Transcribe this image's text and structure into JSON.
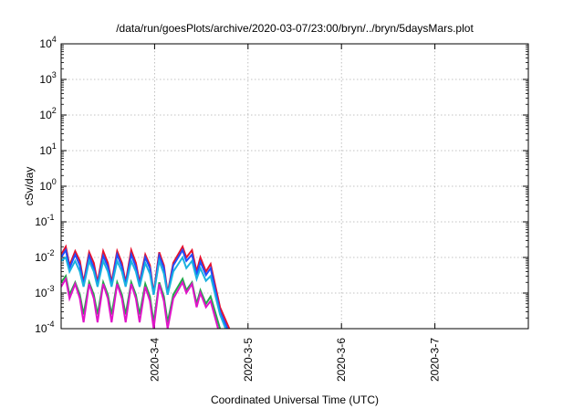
{
  "chart_data": {
    "type": "line",
    "title": "/data/run/goesPlots/archive/2020-03-07/23:00/bryn/../bryn/5daysMars.plot",
    "xlabel": "Coordinated Universal Time (UTC)",
    "ylabel": "cSv/day",
    "y_scale": "log",
    "ylim": [
      0.0001,
      10000
    ],
    "xlim_days": [
      3.0,
      8.0
    ],
    "grid": true,
    "x_ticks": [
      {
        "label": "2020-3-4",
        "day": 4
      },
      {
        "label": "2020-3-5",
        "day": 5
      },
      {
        "label": "2020-3-6",
        "day": 6
      },
      {
        "label": "2020-3-7",
        "day": 7
      }
    ],
    "y_ticks": [
      {
        "base": "10",
        "exp": "4",
        "value": 10000
      },
      {
        "base": "10",
        "exp": "3",
        "value": 1000
      },
      {
        "base": "10",
        "exp": "2",
        "value": 100
      },
      {
        "base": "10",
        "exp": "1",
        "value": 10
      },
      {
        "base": "10",
        "exp": "0",
        "value": 1
      },
      {
        "base": "10",
        "exp": "-1",
        "value": 0.1
      },
      {
        "base": "10",
        "exp": "-2",
        "value": 0.01
      },
      {
        "base": "10",
        "exp": "-3",
        "value": 0.001
      },
      {
        "base": "10",
        "exp": "-4",
        "value": 0.0001
      }
    ],
    "series": [
      {
        "color": "#e8112d",
        "x": [
          3.0,
          3.05,
          3.09,
          3.15,
          3.2,
          3.24,
          3.3,
          3.35,
          3.39,
          3.45,
          3.5,
          3.54,
          3.6,
          3.65,
          3.69,
          3.75,
          3.8,
          3.84,
          3.9,
          3.95,
          3.99,
          4.05,
          4.1,
          4.14,
          4.2,
          4.3,
          4.34,
          4.4,
          4.45,
          4.49,
          4.55,
          4.6,
          4.7,
          4.8
        ],
        "y": [
          0.012,
          0.02,
          0.006,
          0.015,
          0.008,
          0.002,
          0.014,
          0.007,
          0.002,
          0.015,
          0.007,
          0.002,
          0.015,
          0.007,
          0.002,
          0.016,
          0.007,
          0.002,
          0.012,
          0.006,
          0.001,
          0.014,
          0.006,
          0.001,
          0.007,
          0.02,
          0.01,
          0.016,
          0.004,
          0.01,
          0.004,
          0.0065,
          0.0004,
          0.0001
        ]
      },
      {
        "color": "#1f4fff",
        "x": [
          3.0,
          3.05,
          3.09,
          3.15,
          3.2,
          3.24,
          3.3,
          3.35,
          3.39,
          3.45,
          3.5,
          3.54,
          3.6,
          3.65,
          3.69,
          3.75,
          3.8,
          3.84,
          3.9,
          3.95,
          3.99,
          4.05,
          4.1,
          4.14,
          4.2,
          4.3,
          4.34,
          4.4,
          4.45,
          4.49,
          4.55,
          4.6,
          4.7,
          4.78
        ],
        "y": [
          0.01,
          0.016,
          0.005,
          0.012,
          0.006,
          0.0017,
          0.011,
          0.005,
          0.0017,
          0.011,
          0.0055,
          0.0017,
          0.012,
          0.0055,
          0.0017,
          0.012,
          0.0055,
          0.0017,
          0.01,
          0.005,
          0.0009,
          0.011,
          0.005,
          0.0009,
          0.006,
          0.016,
          0.008,
          0.012,
          0.0032,
          0.0075,
          0.0032,
          0.005,
          0.0003,
          0.0001
        ]
      },
      {
        "color": "#1ab1e0",
        "x": [
          3.0,
          3.05,
          3.09,
          3.15,
          3.2,
          3.24,
          3.3,
          3.35,
          3.39,
          3.45,
          3.5,
          3.54,
          3.6,
          3.65,
          3.69,
          3.75,
          3.8,
          3.84,
          3.9,
          3.95,
          3.99,
          4.05,
          4.1,
          4.14,
          4.2,
          4.3,
          4.34,
          4.4,
          4.45,
          4.49,
          4.55,
          4.6,
          4.7,
          4.76
        ],
        "y": [
          0.008,
          0.01,
          0.004,
          0.008,
          0.004,
          0.0015,
          0.008,
          0.004,
          0.0015,
          0.008,
          0.004,
          0.0015,
          0.008,
          0.004,
          0.0015,
          0.008,
          0.004,
          0.0015,
          0.007,
          0.0035,
          0.0009,
          0.008,
          0.0035,
          0.0009,
          0.004,
          0.01,
          0.005,
          0.008,
          0.0025,
          0.005,
          0.0022,
          0.003,
          0.00025,
          0.0001
        ]
      },
      {
        "color": "#22a84a",
        "x": [
          3.0,
          3.05,
          3.09,
          3.15,
          3.2,
          3.24,
          3.3,
          3.35,
          3.39,
          3.45,
          3.5,
          3.54,
          3.6,
          3.65,
          3.69,
          3.75,
          3.8,
          3.84,
          3.9,
          3.95,
          3.99,
          4.05,
          4.1,
          4.14,
          4.2,
          4.3,
          4.34,
          4.4,
          4.45,
          4.49,
          4.55,
          4.6,
          4.7
        ],
        "y": [
          0.002,
          0.003,
          0.0009,
          0.002,
          0.0009,
          0.00025,
          0.002,
          0.0009,
          0.00025,
          0.002,
          0.0009,
          0.00025,
          0.002,
          0.0009,
          0.00025,
          0.002,
          0.0009,
          0.00025,
          0.0018,
          0.0008,
          0.00015,
          0.002,
          0.0008,
          0.00015,
          0.0009,
          0.0025,
          0.0012,
          0.002,
          0.0005,
          0.0012,
          0.0005,
          0.0008,
          0.0001
        ]
      },
      {
        "color": "#e014c8",
        "x": [
          3.0,
          3.05,
          3.09,
          3.15,
          3.2,
          3.24,
          3.3,
          3.35,
          3.39,
          3.45,
          3.5,
          3.54,
          3.6,
          3.65,
          3.69,
          3.75,
          3.8,
          3.84,
          3.9,
          3.95,
          3.99,
          4.05,
          4.1,
          4.14,
          4.2,
          4.3,
          4.34,
          4.4,
          4.45,
          4.49,
          4.55,
          4.6,
          4.68
        ],
        "y": [
          0.0015,
          0.0025,
          0.0007,
          0.0018,
          0.0007,
          0.00015,
          0.0018,
          0.0007,
          0.00015,
          0.0018,
          0.0007,
          0.00015,
          0.0018,
          0.0007,
          0.00015,
          0.0018,
          0.0007,
          0.00015,
          0.0015,
          0.0006,
          0.0001,
          0.0018,
          0.0006,
          0.0001,
          0.0007,
          0.002,
          0.001,
          0.0018,
          0.0004,
          0.001,
          0.0004,
          0.0006,
          0.0001
        ]
      }
    ]
  }
}
